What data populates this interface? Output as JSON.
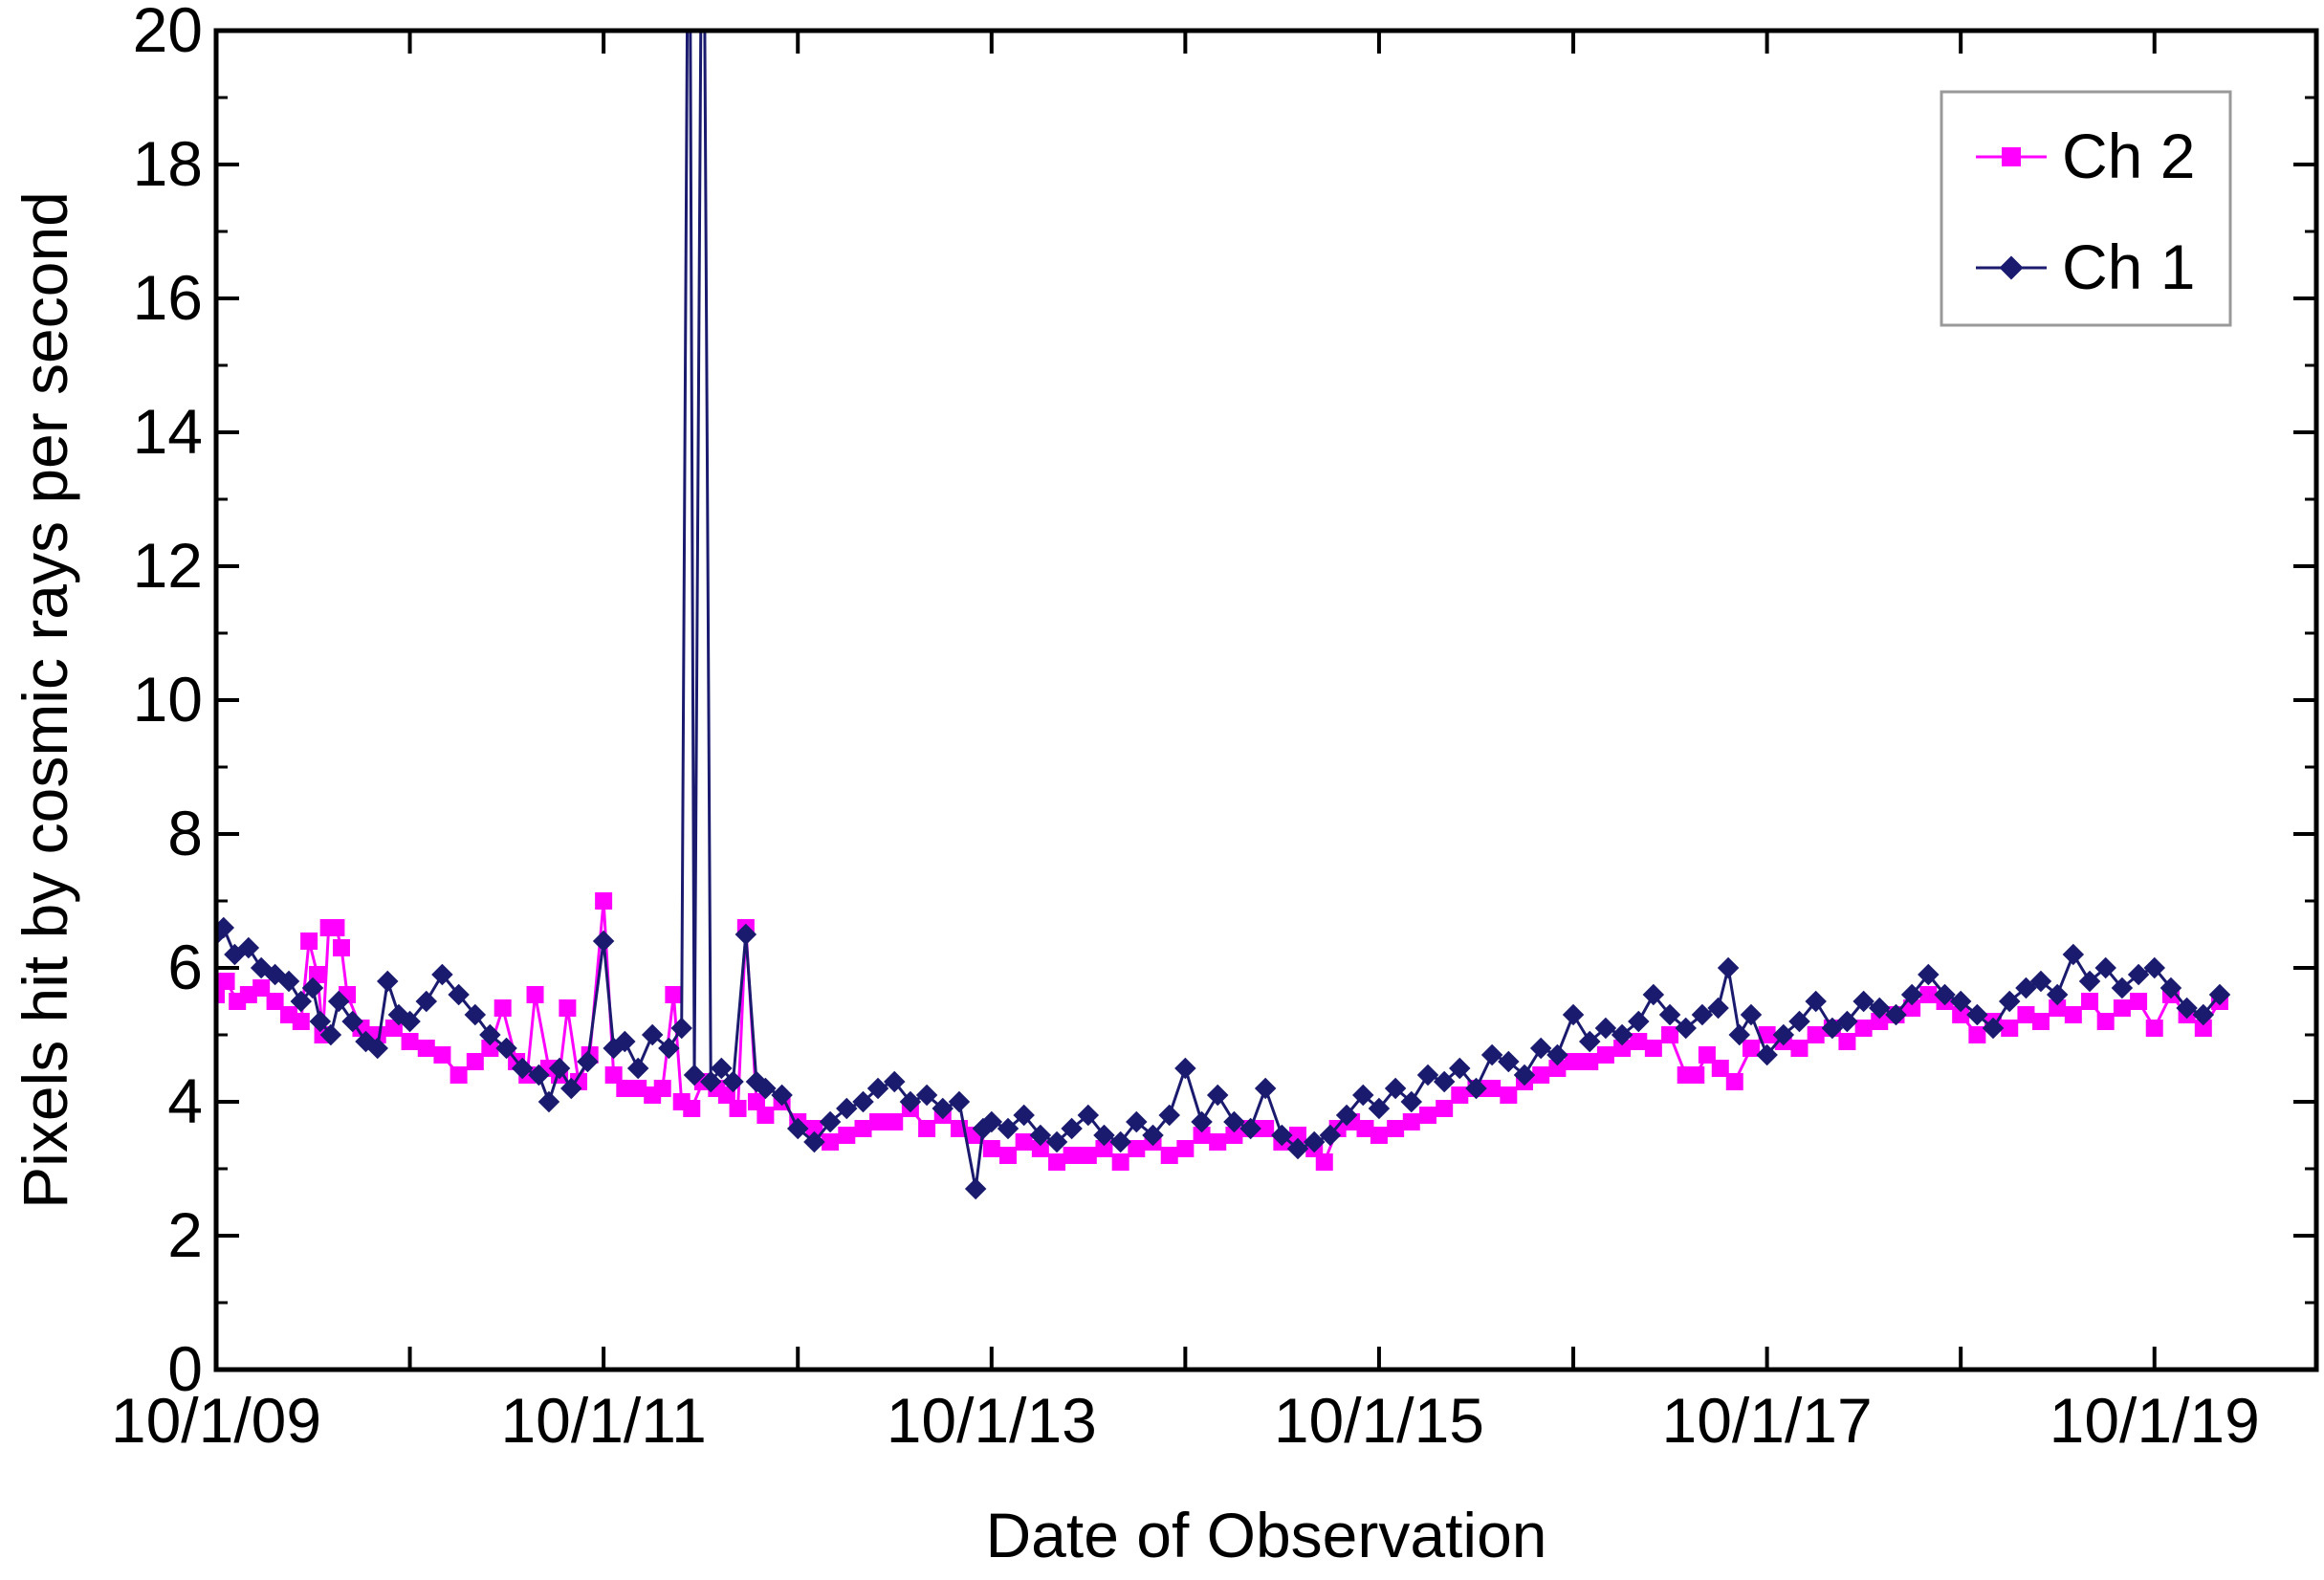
{
  "chart_data": {
    "type": "line",
    "xlabel": "Date of Observation",
    "ylabel": "Pixels hit by cosmic rays per second",
    "x_range": [
      "2009-10-01",
      "2020-08-01"
    ],
    "ylim": [
      0,
      20
    ],
    "y_ticks": [
      0,
      2,
      4,
      6,
      8,
      10,
      12,
      14,
      16,
      18,
      20
    ],
    "x_major_ticks": [
      {
        "date": "2009-10-01",
        "label": "10/1/09"
      },
      {
        "date": "2011-10-01",
        "label": "10/1/11"
      },
      {
        "date": "2013-10-01",
        "label": "10/1/13"
      },
      {
        "date": "2015-10-01",
        "label": "10/1/15"
      },
      {
        "date": "2017-10-01",
        "label": "10/1/17"
      },
      {
        "date": "2019-10-01",
        "label": "10/1/19"
      }
    ],
    "x_minor_ticks": [
      "2010-10-01",
      "2012-10-01",
      "2014-10-01",
      "2016-10-01",
      "2018-10-01"
    ],
    "grid": false,
    "legend_position": "top-right",
    "series": [
      {
        "name": "Ch 2",
        "color": "#ff00ff",
        "marker": "square",
        "points": [
          [
            "2009-10-01",
            5.6
          ],
          [
            "2009-10-20",
            5.8
          ],
          [
            "2009-11-10",
            5.5
          ],
          [
            "2009-12-01",
            5.6
          ],
          [
            "2009-12-25",
            5.7
          ],
          [
            "2010-01-20",
            5.5
          ],
          [
            "2010-02-15",
            5.3
          ],
          [
            "2010-03-10",
            5.2
          ],
          [
            "2010-03-25",
            6.4
          ],
          [
            "2010-04-10",
            5.9
          ],
          [
            "2010-04-20",
            5.0
          ],
          [
            "2010-05-01",
            6.6
          ],
          [
            "2010-05-15",
            6.6
          ],
          [
            "2010-05-25",
            6.3
          ],
          [
            "2010-06-05",
            5.6
          ],
          [
            "2010-07-01",
            5.1
          ],
          [
            "2010-08-01",
            5.0
          ],
          [
            "2010-09-01",
            5.1
          ],
          [
            "2010-10-01",
            4.9
          ],
          [
            "2010-11-01",
            4.8
          ],
          [
            "2010-12-01",
            4.7
          ],
          [
            "2011-01-01",
            4.4
          ],
          [
            "2011-02-01",
            4.6
          ],
          [
            "2011-03-01",
            4.8
          ],
          [
            "2011-03-25",
            5.4
          ],
          [
            "2011-04-20",
            4.6
          ],
          [
            "2011-05-10",
            4.4
          ],
          [
            "2011-05-25",
            5.6
          ],
          [
            "2011-06-20",
            4.5
          ],
          [
            "2011-07-10",
            4.4
          ],
          [
            "2011-07-25",
            5.4
          ],
          [
            "2011-08-15",
            4.3
          ],
          [
            "2011-09-05",
            4.7
          ],
          [
            "2011-10-01",
            7.0
          ],
          [
            "2011-10-20",
            4.4
          ],
          [
            "2011-11-10",
            4.2
          ],
          [
            "2011-12-05",
            4.2
          ],
          [
            "2012-01-01",
            4.1
          ],
          [
            "2012-01-20",
            4.2
          ],
          [
            "2012-02-10",
            5.6
          ],
          [
            "2012-02-25",
            4.0
          ],
          [
            "2012-03-15",
            3.9
          ],
          [
            "2012-04-05",
            4.3
          ],
          [
            "2012-05-01",
            4.2
          ],
          [
            "2012-05-20",
            4.1
          ],
          [
            "2012-06-10",
            3.9
          ],
          [
            "2012-06-25",
            6.6
          ],
          [
            "2012-07-15",
            4.0
          ],
          [
            "2012-08-01",
            3.8
          ],
          [
            "2012-09-01",
            4.0
          ],
          [
            "2012-10-01",
            3.7
          ],
          [
            "2012-11-01",
            3.6
          ],
          [
            "2012-12-01",
            3.4
          ],
          [
            "2013-01-01",
            3.5
          ],
          [
            "2013-02-01",
            3.6
          ],
          [
            "2013-03-01",
            3.7
          ],
          [
            "2013-04-01",
            3.7
          ],
          [
            "2013-05-01",
            3.9
          ],
          [
            "2013-06-01",
            3.6
          ],
          [
            "2013-07-01",
            3.8
          ],
          [
            "2013-08-01",
            3.6
          ],
          [
            "2013-09-01",
            3.5
          ],
          [
            "2013-10-01",
            3.3
          ],
          [
            "2013-11-01",
            3.2
          ],
          [
            "2013-12-01",
            3.4
          ],
          [
            "2014-01-01",
            3.3
          ],
          [
            "2014-02-01",
            3.1
          ],
          [
            "2014-03-01",
            3.2
          ],
          [
            "2014-04-01",
            3.2
          ],
          [
            "2014-05-01",
            3.3
          ],
          [
            "2014-06-01",
            3.1
          ],
          [
            "2014-07-01",
            3.3
          ],
          [
            "2014-08-01",
            3.4
          ],
          [
            "2014-09-01",
            3.2
          ],
          [
            "2014-10-01",
            3.3
          ],
          [
            "2014-11-01",
            3.5
          ],
          [
            "2014-12-01",
            3.4
          ],
          [
            "2015-01-01",
            3.5
          ],
          [
            "2015-02-01",
            3.6
          ],
          [
            "2015-03-01",
            3.6
          ],
          [
            "2015-04-01",
            3.4
          ],
          [
            "2015-05-01",
            3.5
          ],
          [
            "2015-06-01",
            3.3
          ],
          [
            "2015-06-20",
            3.1
          ],
          [
            "2015-07-15",
            3.6
          ],
          [
            "2015-08-10",
            3.7
          ],
          [
            "2015-09-05",
            3.6
          ],
          [
            "2015-10-01",
            3.5
          ],
          [
            "2015-11-01",
            3.6
          ],
          [
            "2015-12-01",
            3.7
          ],
          [
            "2016-01-01",
            3.8
          ],
          [
            "2016-02-01",
            3.9
          ],
          [
            "2016-03-01",
            4.1
          ],
          [
            "2016-04-01",
            4.2
          ],
          [
            "2016-05-01",
            4.2
          ],
          [
            "2016-06-01",
            4.1
          ],
          [
            "2016-07-01",
            4.3
          ],
          [
            "2016-08-01",
            4.4
          ],
          [
            "2016-09-01",
            4.5
          ],
          [
            "2016-10-01",
            4.6
          ],
          [
            "2016-11-01",
            4.6
          ],
          [
            "2016-12-01",
            4.7
          ],
          [
            "2017-01-01",
            4.8
          ],
          [
            "2017-02-01",
            4.9
          ],
          [
            "2017-03-01",
            4.8
          ],
          [
            "2017-04-01",
            5.0
          ],
          [
            "2017-05-01",
            4.4
          ],
          [
            "2017-05-20",
            4.4
          ],
          [
            "2017-06-10",
            4.7
          ],
          [
            "2017-07-05",
            4.5
          ],
          [
            "2017-08-01",
            4.3
          ],
          [
            "2017-09-01",
            4.8
          ],
          [
            "2017-10-01",
            5.0
          ],
          [
            "2017-11-01",
            4.9
          ],
          [
            "2017-12-01",
            4.8
          ],
          [
            "2018-01-01",
            5.0
          ],
          [
            "2018-02-01",
            5.1
          ],
          [
            "2018-03-01",
            4.9
          ],
          [
            "2018-04-01",
            5.1
          ],
          [
            "2018-05-01",
            5.2
          ],
          [
            "2018-06-01",
            5.3
          ],
          [
            "2018-07-01",
            5.4
          ],
          [
            "2018-08-01",
            5.6
          ],
          [
            "2018-09-01",
            5.5
          ],
          [
            "2018-10-01",
            5.3
          ],
          [
            "2018-11-01",
            5.0
          ],
          [
            "2018-12-01",
            5.2
          ],
          [
            "2019-01-01",
            5.1
          ],
          [
            "2019-02-01",
            5.3
          ],
          [
            "2019-03-01",
            5.2
          ],
          [
            "2019-04-01",
            5.4
          ],
          [
            "2019-05-01",
            5.3
          ],
          [
            "2019-06-01",
            5.5
          ],
          [
            "2019-07-01",
            5.2
          ],
          [
            "2019-08-01",
            5.4
          ],
          [
            "2019-09-01",
            5.5
          ],
          [
            "2019-10-01",
            5.1
          ],
          [
            "2019-11-01",
            5.6
          ],
          [
            "2019-12-01",
            5.3
          ],
          [
            "2020-01-01",
            5.1
          ],
          [
            "2020-02-01",
            5.5
          ]
        ]
      },
      {
        "name": "Ch 1",
        "color": "#1a1a6e",
        "marker": "diamond",
        "points": [
          [
            "2009-10-01",
            6.5
          ],
          [
            "2009-10-15",
            6.6
          ],
          [
            "2009-11-05",
            6.2
          ],
          [
            "2009-12-01",
            6.3
          ],
          [
            "2009-12-25",
            6.0
          ],
          [
            "2010-01-20",
            5.9
          ],
          [
            "2010-02-15",
            5.8
          ],
          [
            "2010-03-10",
            5.5
          ],
          [
            "2010-04-01",
            5.7
          ],
          [
            "2010-04-15",
            5.2
          ],
          [
            "2010-05-05",
            5.0
          ],
          [
            "2010-05-20",
            5.5
          ],
          [
            "2010-06-15",
            5.2
          ],
          [
            "2010-07-10",
            4.9
          ],
          [
            "2010-08-01",
            4.8
          ],
          [
            "2010-08-20",
            5.8
          ],
          [
            "2010-09-10",
            5.3
          ],
          [
            "2010-10-01",
            5.2
          ],
          [
            "2010-11-01",
            5.5
          ],
          [
            "2010-12-01",
            5.9
          ],
          [
            "2011-01-01",
            5.6
          ],
          [
            "2011-02-01",
            5.3
          ],
          [
            "2011-03-01",
            5.0
          ],
          [
            "2011-04-01",
            4.8
          ],
          [
            "2011-05-01",
            4.5
          ],
          [
            "2011-06-01",
            4.4
          ],
          [
            "2011-06-20",
            4.0
          ],
          [
            "2011-07-10",
            4.5
          ],
          [
            "2011-08-01",
            4.2
          ],
          [
            "2011-09-01",
            4.6
          ],
          [
            "2011-10-01",
            6.4
          ],
          [
            "2011-10-20",
            4.8
          ],
          [
            "2011-11-10",
            4.9
          ],
          [
            "2011-12-05",
            4.5
          ],
          [
            "2012-01-01",
            5.0
          ],
          [
            "2012-02-01",
            4.8
          ],
          [
            "2012-02-25",
            5.1
          ],
          [
            "2012-03-10",
            25.0
          ],
          [
            "2012-03-20",
            4.4
          ],
          [
            "2012-04-05",
            25.0
          ],
          [
            "2012-04-20",
            4.3
          ],
          [
            "2012-05-10",
            4.5
          ],
          [
            "2012-06-01",
            4.3
          ],
          [
            "2012-06-25",
            6.5
          ],
          [
            "2012-07-15",
            4.3
          ],
          [
            "2012-08-01",
            4.2
          ],
          [
            "2012-09-01",
            4.1
          ],
          [
            "2012-10-01",
            3.6
          ],
          [
            "2012-11-01",
            3.4
          ],
          [
            "2012-12-01",
            3.7
          ],
          [
            "2013-01-01",
            3.9
          ],
          [
            "2013-02-01",
            4.0
          ],
          [
            "2013-03-01",
            4.2
          ],
          [
            "2013-04-01",
            4.3
          ],
          [
            "2013-05-01",
            4.0
          ],
          [
            "2013-06-01",
            4.1
          ],
          [
            "2013-07-01",
            3.9
          ],
          [
            "2013-08-01",
            4.0
          ],
          [
            "2013-09-01",
            2.7
          ],
          [
            "2013-09-15",
            3.6
          ],
          [
            "2013-10-01",
            3.7
          ],
          [
            "2013-11-01",
            3.6
          ],
          [
            "2013-12-01",
            3.8
          ],
          [
            "2014-01-01",
            3.5
          ],
          [
            "2014-02-01",
            3.4
          ],
          [
            "2014-03-01",
            3.6
          ],
          [
            "2014-04-01",
            3.8
          ],
          [
            "2014-05-01",
            3.5
          ],
          [
            "2014-06-01",
            3.4
          ],
          [
            "2014-07-01",
            3.7
          ],
          [
            "2014-08-01",
            3.5
          ],
          [
            "2014-09-01",
            3.8
          ],
          [
            "2014-10-01",
            4.5
          ],
          [
            "2014-11-01",
            3.7
          ],
          [
            "2014-12-01",
            4.1
          ],
          [
            "2015-01-01",
            3.7
          ],
          [
            "2015-02-01",
            3.6
          ],
          [
            "2015-03-01",
            4.2
          ],
          [
            "2015-04-01",
            3.5
          ],
          [
            "2015-05-01",
            3.3
          ],
          [
            "2015-06-01",
            3.4
          ],
          [
            "2015-07-01",
            3.5
          ],
          [
            "2015-08-01",
            3.8
          ],
          [
            "2015-09-01",
            4.1
          ],
          [
            "2015-10-01",
            3.9
          ],
          [
            "2015-11-01",
            4.2
          ],
          [
            "2015-12-01",
            4.0
          ],
          [
            "2016-01-01",
            4.4
          ],
          [
            "2016-02-01",
            4.3
          ],
          [
            "2016-03-01",
            4.5
          ],
          [
            "2016-04-01",
            4.2
          ],
          [
            "2016-05-01",
            4.7
          ],
          [
            "2016-06-01",
            4.6
          ],
          [
            "2016-07-01",
            4.4
          ],
          [
            "2016-08-01",
            4.8
          ],
          [
            "2016-09-01",
            4.7
          ],
          [
            "2016-10-01",
            5.3
          ],
          [
            "2016-11-01",
            4.9
          ],
          [
            "2016-12-01",
            5.1
          ],
          [
            "2017-01-01",
            5.0
          ],
          [
            "2017-02-01",
            5.2
          ],
          [
            "2017-03-01",
            5.6
          ],
          [
            "2017-04-01",
            5.3
          ],
          [
            "2017-05-01",
            5.1
          ],
          [
            "2017-06-01",
            5.3
          ],
          [
            "2017-07-01",
            5.4
          ],
          [
            "2017-07-20",
            6.0
          ],
          [
            "2017-08-10",
            5.0
          ],
          [
            "2017-09-01",
            5.3
          ],
          [
            "2017-10-01",
            4.7
          ],
          [
            "2017-11-01",
            5.0
          ],
          [
            "2017-12-01",
            5.2
          ],
          [
            "2018-01-01",
            5.5
          ],
          [
            "2018-02-01",
            5.1
          ],
          [
            "2018-03-01",
            5.2
          ],
          [
            "2018-04-01",
            5.5
          ],
          [
            "2018-05-01",
            5.4
          ],
          [
            "2018-06-01",
            5.3
          ],
          [
            "2018-07-01",
            5.6
          ],
          [
            "2018-08-01",
            5.9
          ],
          [
            "2018-09-01",
            5.6
          ],
          [
            "2018-10-01",
            5.5
          ],
          [
            "2018-11-01",
            5.3
          ],
          [
            "2018-12-01",
            5.1
          ],
          [
            "2019-01-01",
            5.5
          ],
          [
            "2019-02-01",
            5.7
          ],
          [
            "2019-03-01",
            5.8
          ],
          [
            "2019-04-01",
            5.6
          ],
          [
            "2019-05-01",
            6.2
          ],
          [
            "2019-06-01",
            5.8
          ],
          [
            "2019-07-01",
            6.0
          ],
          [
            "2019-08-01",
            5.7
          ],
          [
            "2019-09-01",
            5.9
          ],
          [
            "2019-10-01",
            6.0
          ],
          [
            "2019-11-01",
            5.7
          ],
          [
            "2019-12-01",
            5.4
          ],
          [
            "2020-01-01",
            5.3
          ],
          [
            "2020-02-01",
            5.6
          ]
        ]
      }
    ]
  }
}
